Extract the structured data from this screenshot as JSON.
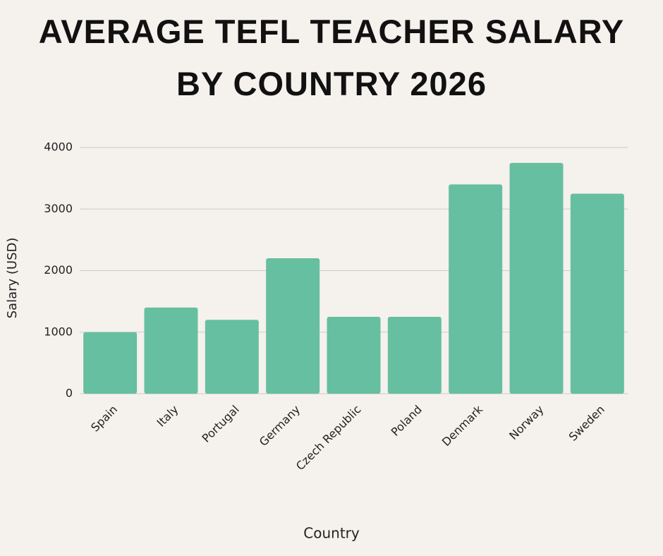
{
  "chart_data": {
    "type": "bar",
    "title": "AVERAGE TEFL TEACHER SALARY BY COUNTRY 2026",
    "categories": [
      "Spain",
      "Italy",
      "Portugal",
      "Germany",
      "Czech Republic",
      "Poland",
      "Denmark",
      "Norway",
      "Sweden"
    ],
    "values": [
      1000,
      1400,
      1200,
      2200,
      1250,
      1250,
      3400,
      3750,
      3250
    ],
    "color": "#66bfa0",
    "ylim": [
      0,
      4000
    ],
    "yticks": [
      0,
      1000,
      2000,
      3000,
      4000
    ],
    "grid": true,
    "x_label": "Country",
    "y_label": "Salary (USD)"
  }
}
